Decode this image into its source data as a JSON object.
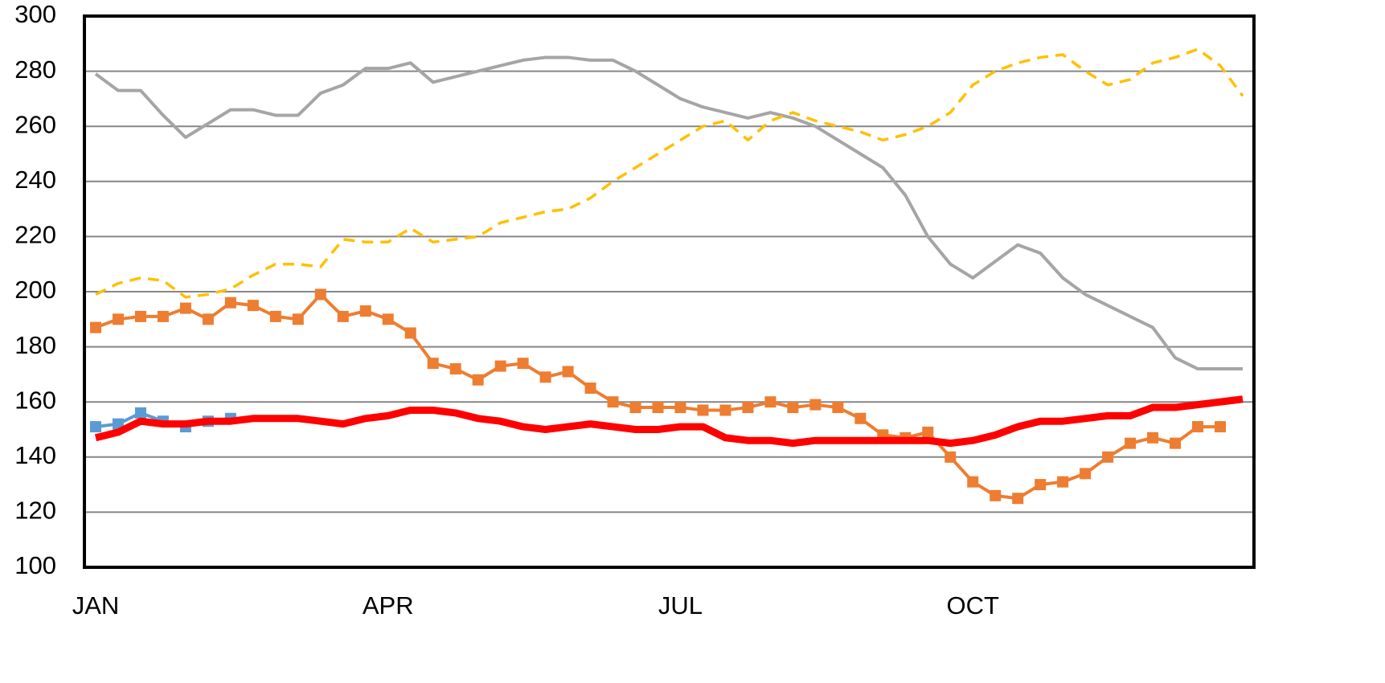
{
  "chart_data": {
    "type": "line",
    "categories": [
      "JAN",
      null,
      null,
      null,
      null,
      null,
      null,
      null,
      null,
      null,
      null,
      null,
      null,
      "APR",
      null,
      null,
      null,
      null,
      null,
      null,
      null,
      null,
      null,
      null,
      null,
      null,
      "JUL",
      null,
      null,
      null,
      null,
      null,
      null,
      null,
      null,
      null,
      null,
      null,
      null,
      "OCT",
      null,
      null,
      null,
      null,
      null,
      null,
      null,
      null,
      null,
      null,
      null,
      null
    ],
    "ylim": [
      100,
      300
    ],
    "yticks": [
      100,
      120,
      140,
      160,
      180,
      200,
      220,
      240,
      260,
      280,
      300
    ],
    "grid": true,
    "series": [
      {
        "color": "#a5a5a5",
        "width": 4,
        "dash": false,
        "marker": "none",
        "values": [
          279,
          273,
          273,
          264,
          256,
          261,
          266,
          266,
          264,
          264,
          272,
          275,
          281,
          281,
          283,
          276,
          278,
          280,
          282,
          284,
          285,
          285,
          284,
          284,
          280,
          275,
          270,
          267,
          265,
          263,
          265,
          263,
          260,
          255,
          250,
          245,
          235,
          220,
          210,
          205,
          211,
          217,
          214,
          205,
          199,
          195,
          191,
          187,
          176,
          172,
          172,
          172
        ]
      },
      {
        "color": "#ffc000",
        "width": 3.5,
        "dash": true,
        "marker": "none",
        "values": [
          199,
          203,
          205,
          204,
          198,
          199,
          201,
          206,
          210,
          210,
          209,
          219,
          218,
          218,
          223,
          218,
          219,
          220,
          225,
          227,
          229,
          230,
          234,
          240,
          245,
          250,
          255,
          260,
          262,
          255,
          262,
          265,
          262,
          260,
          258,
          255,
          257,
          260,
          265,
          275,
          280,
          283,
          285,
          286,
          280,
          275,
          277,
          283,
          285,
          288,
          282,
          271
        ]
      },
      {
        "color": "#ed7d31",
        "width": 4,
        "dash": false,
        "marker": "square",
        "values": [
          187,
          190,
          191,
          191,
          194,
          190,
          196,
          195,
          191,
          190,
          199,
          191,
          193,
          190,
          185,
          174,
          172,
          168,
          173,
          174,
          169,
          171,
          165,
          160,
          158,
          158,
          158,
          157,
          157,
          158,
          160,
          158,
          159,
          158,
          154,
          148,
          147,
          149,
          140,
          131,
          126,
          125,
          130,
          131,
          134,
          140,
          145,
          147,
          145,
          151,
          151,
          null
        ]
      },
      {
        "color": "#5b9bd5",
        "width": 4,
        "dash": false,
        "marker": "square",
        "values": [
          151,
          152,
          156,
          153,
          151,
          153,
          154,
          null,
          null,
          null,
          null,
          null,
          null,
          null,
          null,
          null,
          null,
          null,
          null,
          null,
          null,
          null,
          null,
          null,
          null,
          null,
          null,
          null,
          null,
          null,
          null,
          null,
          null,
          null,
          null,
          null,
          null,
          null,
          null,
          null,
          null,
          null,
          null,
          null,
          null,
          null,
          null,
          null,
          null,
          null,
          null,
          null
        ]
      },
      {
        "color": "#ff0000",
        "width": 9,
        "dash": false,
        "marker": "none",
        "values": [
          147,
          149,
          153,
          152,
          152,
          153,
          153,
          154,
          154,
          154,
          153,
          152,
          154,
          155,
          157,
          157,
          156,
          154,
          153,
          151,
          150,
          151,
          152,
          151,
          150,
          150,
          151,
          151,
          147,
          146,
          146,
          145,
          146,
          146,
          146,
          146,
          146,
          146,
          145,
          146,
          148,
          151,
          153,
          153,
          154,
          155,
          155,
          158,
          158,
          159,
          160,
          161
        ]
      }
    ]
  }
}
